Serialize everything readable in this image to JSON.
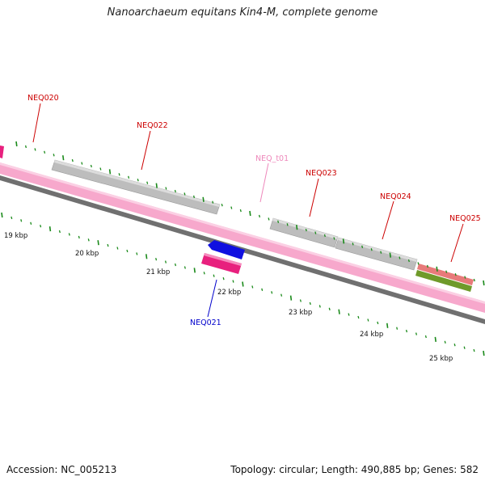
{
  "title": "Nanoarchaeum equitans Kin4-M, complete genome",
  "footer": {
    "accession": "Accession: NC_005213",
    "summary": "Topology: circular; Length: 490,885 bp; Genes: 582"
  },
  "colors": {
    "label_red": "#cc0000",
    "label_pink": "#ee88bb",
    "label_blue": "#0000cc",
    "backbone_pink": "#f7a8cc",
    "backbone_gray": "#707070",
    "gene_gray": "#bdbdbd",
    "gene_magenta": "#e8207e",
    "gene_blue": "#1010e0",
    "gene_salmon": "#e87a7a",
    "gene_olive": "#6f9a2a",
    "tick_green": "#1a8a1a"
  },
  "genes": [
    {
      "name": "NEQ020",
      "color": "label_red"
    },
    {
      "name": "NEQ022",
      "color": "label_red"
    },
    {
      "name": "NEQ_t01",
      "color": "label_pink"
    },
    {
      "name": "NEQ023",
      "color": "label_red"
    },
    {
      "name": "NEQ024",
      "color": "label_red"
    },
    {
      "name": "NEQ025",
      "color": "label_red"
    },
    {
      "name": "NEQ021",
      "color": "label_blue"
    }
  ],
  "scale": {
    "unit": "kbp",
    "labels": [
      "19 kbp",
      "20 kbp",
      "21 kbp",
      "22 kbp",
      "23 kbp",
      "24 kbp",
      "25 kbp"
    ]
  }
}
